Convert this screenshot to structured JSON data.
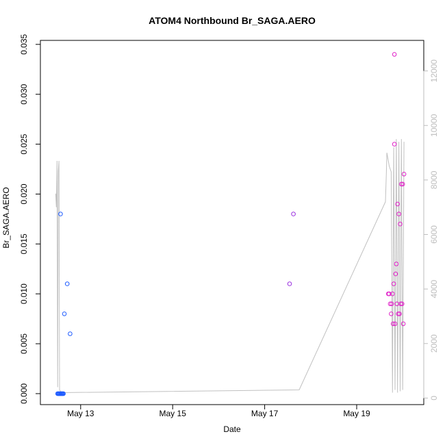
{
  "chart_data": {
    "type": "scatter",
    "title": "ATOM4 Northbound Br_SAGA.AERO",
    "xlabel": "Date",
    "ylabel": "Br_SAGA.AERO",
    "xlim": [
      "2016-05-12T03:00",
      "2016-05-20T11:00"
    ],
    "ylim": [
      -0.0011,
      0.0354
    ],
    "y2lim": [
      -240,
      13120
    ],
    "x_ticks": [
      {
        "t": "2016-05-13T00:00",
        "label": "May 13"
      },
      {
        "t": "2016-05-15T00:00",
        "label": "May 15"
      },
      {
        "t": "2016-05-17T00:00",
        "label": "May 17"
      },
      {
        "t": "2016-05-19T00:00",
        "label": "May 19"
      }
    ],
    "y_ticks": [
      {
        "v": 0.0,
        "label": "0.000"
      },
      {
        "v": 0.005,
        "label": "0.005"
      },
      {
        "v": 0.01,
        "label": "0.010"
      },
      {
        "v": 0.015,
        "label": "0.015"
      },
      {
        "v": 0.02,
        "label": "0.020"
      },
      {
        "v": 0.025,
        "label": "0.025"
      },
      {
        "v": 0.03,
        "label": "0.030"
      },
      {
        "v": 0.035,
        "label": "0.035"
      }
    ],
    "y2_ticks": [
      {
        "v": 0,
        "label": "0"
      },
      {
        "v": 2000,
        "label": "2000"
      },
      {
        "v": 4000,
        "label": "4000"
      },
      {
        "v": 6000,
        "label": "6000"
      },
      {
        "v": 8000,
        "label": "8000"
      },
      {
        "v": 10000,
        "label": "10000"
      },
      {
        "v": 12000,
        "label": "12000"
      }
    ],
    "grid": false,
    "legend": "none",
    "colors": {
      "early": "#1f5cff",
      "middle": "#9b30e0",
      "late": "#e020c8",
      "altitude": "#c0c0c0",
      "axis": "#000000",
      "right_axis": "#bdbdbd"
    },
    "points": [
      {
        "t": "2016-05-12T12:00",
        "y": 0.0,
        "c": "#1f5cff"
      },
      {
        "t": "2016-05-12T12:20",
        "y": 0.0,
        "c": "#1f5cff"
      },
      {
        "t": "2016-05-12T12:40",
        "y": 0.0,
        "c": "#1f5cff"
      },
      {
        "t": "2016-05-12T13:00",
        "y": 0.0,
        "c": "#1f5cff"
      },
      {
        "t": "2016-05-12T13:20",
        "y": 0.0,
        "c": "#1f5cff"
      },
      {
        "t": "2016-05-12T13:40",
        "y": 0.0,
        "c": "#1f5cff"
      },
      {
        "t": "2016-05-12T14:00",
        "y": 0.0,
        "c": "#1f5cff"
      },
      {
        "t": "2016-05-12T14:20",
        "y": 0.0,
        "c": "#1f5cff"
      },
      {
        "t": "2016-05-12T14:40",
        "y": 0.0,
        "c": "#1f5cff"
      },
      {
        "t": "2016-05-12T15:00",
        "y": 0.0,
        "c": "#1f5cff"
      },
      {
        "t": "2016-05-12T13:30",
        "y": 0.018,
        "c": "#1f5cff"
      },
      {
        "t": "2016-05-12T15:30",
        "y": 0.008,
        "c": "#1f5cff"
      },
      {
        "t": "2016-05-12T17:00",
        "y": 0.011,
        "c": "#1f5cff"
      },
      {
        "t": "2016-05-12T18:30",
        "y": 0.006,
        "c": "#1f5cff"
      },
      {
        "t": "2016-05-17T13:00",
        "y": 0.011,
        "c": "#9b30e0"
      },
      {
        "t": "2016-05-17T15:00",
        "y": 0.018,
        "c": "#9b30e0"
      },
      {
        "t": "2016-05-19T16:30",
        "y": 0.01,
        "c": "#e020c8"
      },
      {
        "t": "2016-05-19T17:00",
        "y": 0.01,
        "c": "#e020c8"
      },
      {
        "t": "2016-05-19T17:30",
        "y": 0.009,
        "c": "#e020c8"
      },
      {
        "t": "2016-05-19T18:00",
        "y": 0.008,
        "c": "#e020c8"
      },
      {
        "t": "2016-05-19T18:15",
        "y": 0.009,
        "c": "#e020c8"
      },
      {
        "t": "2016-05-19T18:40",
        "y": 0.01,
        "c": "#e020c8"
      },
      {
        "t": "2016-05-19T19:00",
        "y": 0.007,
        "c": "#e020c8"
      },
      {
        "t": "2016-05-19T19:20",
        "y": 0.011,
        "c": "#e020c8"
      },
      {
        "t": "2016-05-19T19:40",
        "y": 0.025,
        "c": "#e020c8"
      },
      {
        "t": "2016-05-19T19:40",
        "y": 0.034,
        "c": "#e020c8"
      },
      {
        "t": "2016-05-19T20:00",
        "y": 0.007,
        "c": "#e020c8"
      },
      {
        "t": "2016-05-19T20:20",
        "y": 0.012,
        "c": "#e020c8"
      },
      {
        "t": "2016-05-19T20:40",
        "y": 0.013,
        "c": "#e020c8"
      },
      {
        "t": "2016-05-19T21:00",
        "y": 0.009,
        "c": "#e020c8"
      },
      {
        "t": "2016-05-19T21:20",
        "y": 0.019,
        "c": "#e020c8"
      },
      {
        "t": "2016-05-19T21:40",
        "y": 0.008,
        "c": "#e020c8"
      },
      {
        "t": "2016-05-19T22:00",
        "y": 0.018,
        "c": "#e020c8"
      },
      {
        "t": "2016-05-19T22:20",
        "y": 0.008,
        "c": "#e020c8"
      },
      {
        "t": "2016-05-19T22:40",
        "y": 0.017,
        "c": "#e020c8"
      },
      {
        "t": "2016-05-19T23:00",
        "y": 0.009,
        "c": "#e020c8"
      },
      {
        "t": "2016-05-19T23:20",
        "y": 0.021,
        "c": "#e020c8"
      },
      {
        "t": "2016-05-19T23:40",
        "y": 0.009,
        "c": "#e020c8"
      },
      {
        "t": "2016-05-20T00:00",
        "y": 0.021,
        "c": "#e020c8"
      },
      {
        "t": "2016-05-20T00:20",
        "y": 0.007,
        "c": "#e020c8"
      },
      {
        "t": "2016-05-20T00:40",
        "y": 0.022,
        "c": "#e020c8"
      }
    ],
    "altitude_series": [
      {
        "t": "2016-05-12T11:00",
        "alt": 7500
      },
      {
        "t": "2016-05-12T11:20",
        "alt": 7000
      },
      {
        "t": "2016-05-12T11:40",
        "alt": 8700
      },
      {
        "t": "2016-05-12T12:00",
        "alt": 400
      },
      {
        "t": "2016-05-12T12:20",
        "alt": 8300
      },
      {
        "t": "2016-05-12T12:40",
        "alt": 8700
      },
      {
        "t": "2016-05-12T13:00",
        "alt": 300
      },
      {
        "t": "2016-05-12T14:00",
        "alt": 200
      },
      {
        "t": "2016-05-17T18:00",
        "alt": 300
      },
      {
        "t": "2016-05-19T15:00",
        "alt": 7200
      },
      {
        "t": "2016-05-19T15:30",
        "alt": 8300
      },
      {
        "t": "2016-05-19T15:45",
        "alt": 9000
      },
      {
        "t": "2016-05-19T17:00",
        "alt": 8500
      },
      {
        "t": "2016-05-19T18:00",
        "alt": 8300
      },
      {
        "t": "2016-05-19T18:40",
        "alt": 200
      },
      {
        "t": "2016-05-19T19:20",
        "alt": 9200
      },
      {
        "t": "2016-05-19T20:00",
        "alt": 300
      },
      {
        "t": "2016-05-19T20:40",
        "alt": 9500
      },
      {
        "t": "2016-05-19T21:20",
        "alt": 200
      },
      {
        "t": "2016-05-19T22:00",
        "alt": 9400
      },
      {
        "t": "2016-05-19T22:40",
        "alt": 250
      },
      {
        "t": "2016-05-19T23:20",
        "alt": 9500
      },
      {
        "t": "2016-05-20T00:00",
        "alt": 300
      },
      {
        "t": "2016-05-20T00:40",
        "alt": 9400
      }
    ]
  }
}
